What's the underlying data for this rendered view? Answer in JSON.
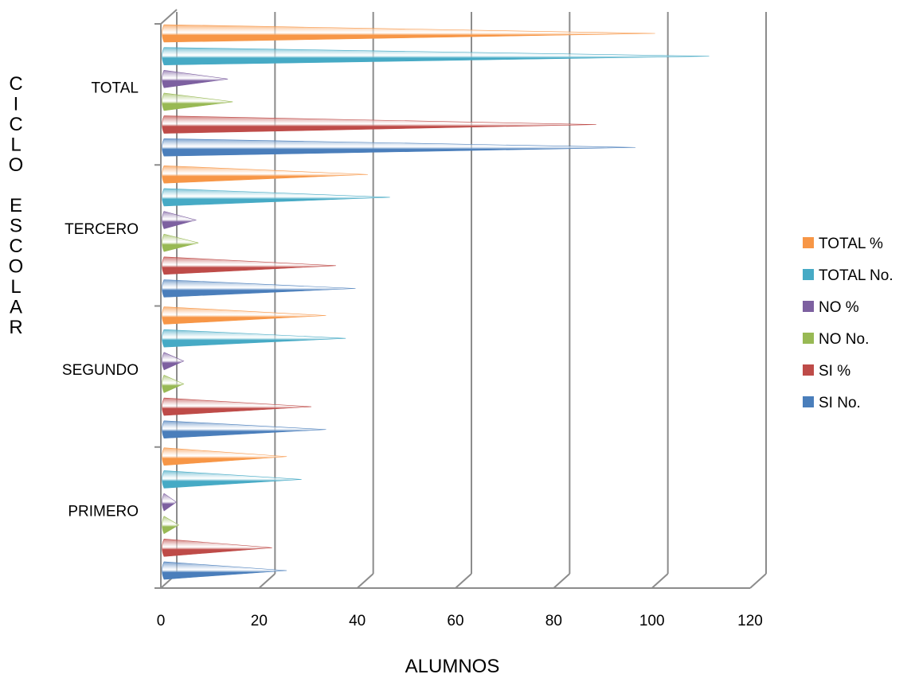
{
  "chart_data": {
    "type": "bar",
    "orientation": "horizontal",
    "shape": "cone",
    "xlabel": "ALUMNOS",
    "ylabel_letters": [
      "C",
      "I",
      "C",
      "L",
      "O",
      "",
      "E",
      "S",
      "C",
      "O",
      "L",
      "A",
      "R"
    ],
    "xlim": [
      0,
      120
    ],
    "xticks": [
      "0",
      "20",
      "40",
      "60",
      "80",
      "100",
      "120"
    ],
    "grid": true,
    "legend_position": "right",
    "categories": [
      "PRIMERO",
      "SEGUNDO",
      "TERCERO",
      "TOTAL"
    ],
    "series": [
      {
        "name": "SI No.",
        "color": "#4a7ebb",
        "values": [
          25,
          33,
          39,
          96
        ]
      },
      {
        "name": "SI %",
        "color": "#be4b48",
        "values": [
          22,
          30,
          35,
          88
        ]
      },
      {
        "name": "NO No.",
        "color": "#98b954",
        "values": [
          3,
          4,
          7,
          14
        ]
      },
      {
        "name": "NO %",
        "color": "#7d60a0",
        "values": [
          2.5,
          4,
          6.5,
          13
        ]
      },
      {
        "name": "TOTAL No.",
        "color": "#46aac5",
        "values": [
          28,
          37,
          46,
          111
        ]
      },
      {
        "name": "TOTAL %",
        "color": "#f79646",
        "values": [
          25,
          33,
          41.5,
          100
        ]
      }
    ]
  }
}
